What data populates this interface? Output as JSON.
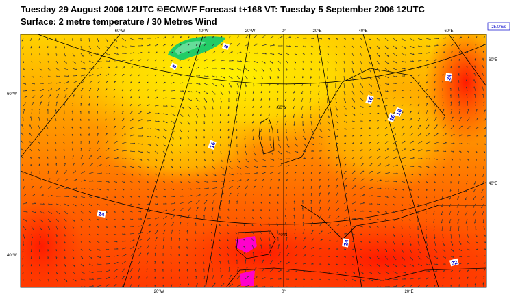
{
  "header": {
    "title": "Tuesday 29 August 2006 12UTC ©ECMWF Forecast t+168 VT: Tuesday 5 September 2006 12UTC",
    "subtitle": "Surface: 2 metre temperature / 30 Metres Wind"
  },
  "map": {
    "top_labels": [
      "60°W",
      "40°W",
      "20°W",
      "0°",
      "20°E",
      "40°E",
      "60°E"
    ],
    "bottom_labels": [
      "20°W",
      "0°",
      "20°E"
    ],
    "left_labels": [
      "60°W",
      "40°W"
    ],
    "right_labels": [
      "60°E",
      "40°E"
    ],
    "inner_labels": [
      "60°N",
      "40°N"
    ],
    "contour_labels": [
      "8",
      "8",
      "16",
      "16",
      "16",
      "16",
      "24",
      "24",
      "24",
      "32"
    ],
    "wind_reference": "25.0m/s"
  }
}
